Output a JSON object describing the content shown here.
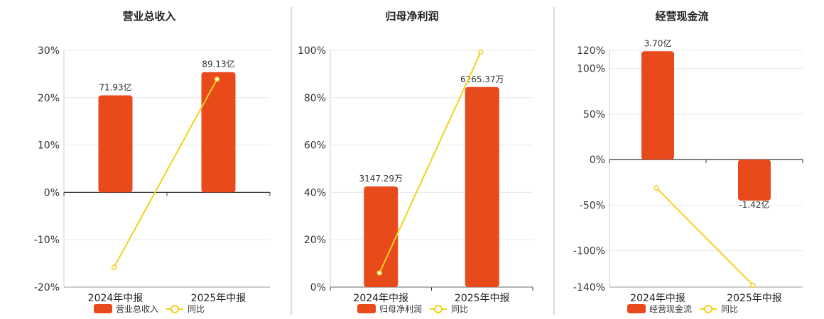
{
  "colors": {
    "bar": "#E84A1C",
    "line": "#F2D21B",
    "grid": "#E6E8EE",
    "axis": "#333333",
    "divider": "#BBBBBB"
  },
  "chart_data": [
    {
      "type": "bar",
      "title": "营业总收入",
      "categories": [
        "2024年中报",
        "2025年中报"
      ],
      "series": [
        {
          "name": "营业总收入",
          "kind": "bar",
          "values": [
            20.5,
            25.4
          ],
          "labels": [
            "71.93亿",
            "89.13亿"
          ]
        },
        {
          "name": "同比",
          "kind": "line",
          "values": [
            -15.8,
            23.9
          ]
        }
      ],
      "ylim": [
        -20,
        30
      ],
      "yticks": [
        -20,
        -10,
        0,
        10,
        20,
        30
      ],
      "ytick_labels": [
        "-20%",
        "-10%",
        "0%",
        "10%",
        "20%",
        "30%"
      ],
      "grid": true,
      "legend": "bottom"
    },
    {
      "type": "bar",
      "title": "归母净利润",
      "categories": [
        "2024年中报",
        "2025年中报"
      ],
      "series": [
        {
          "name": "归母净利润",
          "kind": "bar",
          "values": [
            42.5,
            84.5
          ],
          "labels": [
            "3147.29万",
            "6265.37万"
          ]
        },
        {
          "name": "同比",
          "kind": "line",
          "values": [
            6.0,
            99.2
          ]
        }
      ],
      "ylim": [
        0,
        100
      ],
      "yticks": [
        0,
        20,
        40,
        60,
        80,
        100
      ],
      "ytick_labels": [
        "0%",
        "20%",
        "40%",
        "60%",
        "80%",
        "100%"
      ],
      "grid": true,
      "legend": "bottom"
    },
    {
      "type": "bar",
      "title": "经营现金流",
      "categories": [
        "2024年中报",
        "2025年中报"
      ],
      "series": [
        {
          "name": "经营现金流",
          "kind": "bar",
          "values": [
            119,
            -45
          ],
          "labels": [
            "3.70亿",
            "-1.42亿"
          ]
        },
        {
          "name": "同比",
          "kind": "line",
          "values": [
            -31,
            -138
          ]
        }
      ],
      "ylim": [
        -140,
        120
      ],
      "yticks": [
        -140,
        -100,
        -50,
        0,
        50,
        100,
        120
      ],
      "ytick_labels": [
        "-140%",
        "-100%",
        "-50%",
        "0%",
        "50%",
        "100%",
        "120%"
      ],
      "grid": true,
      "legend": "bottom"
    }
  ]
}
